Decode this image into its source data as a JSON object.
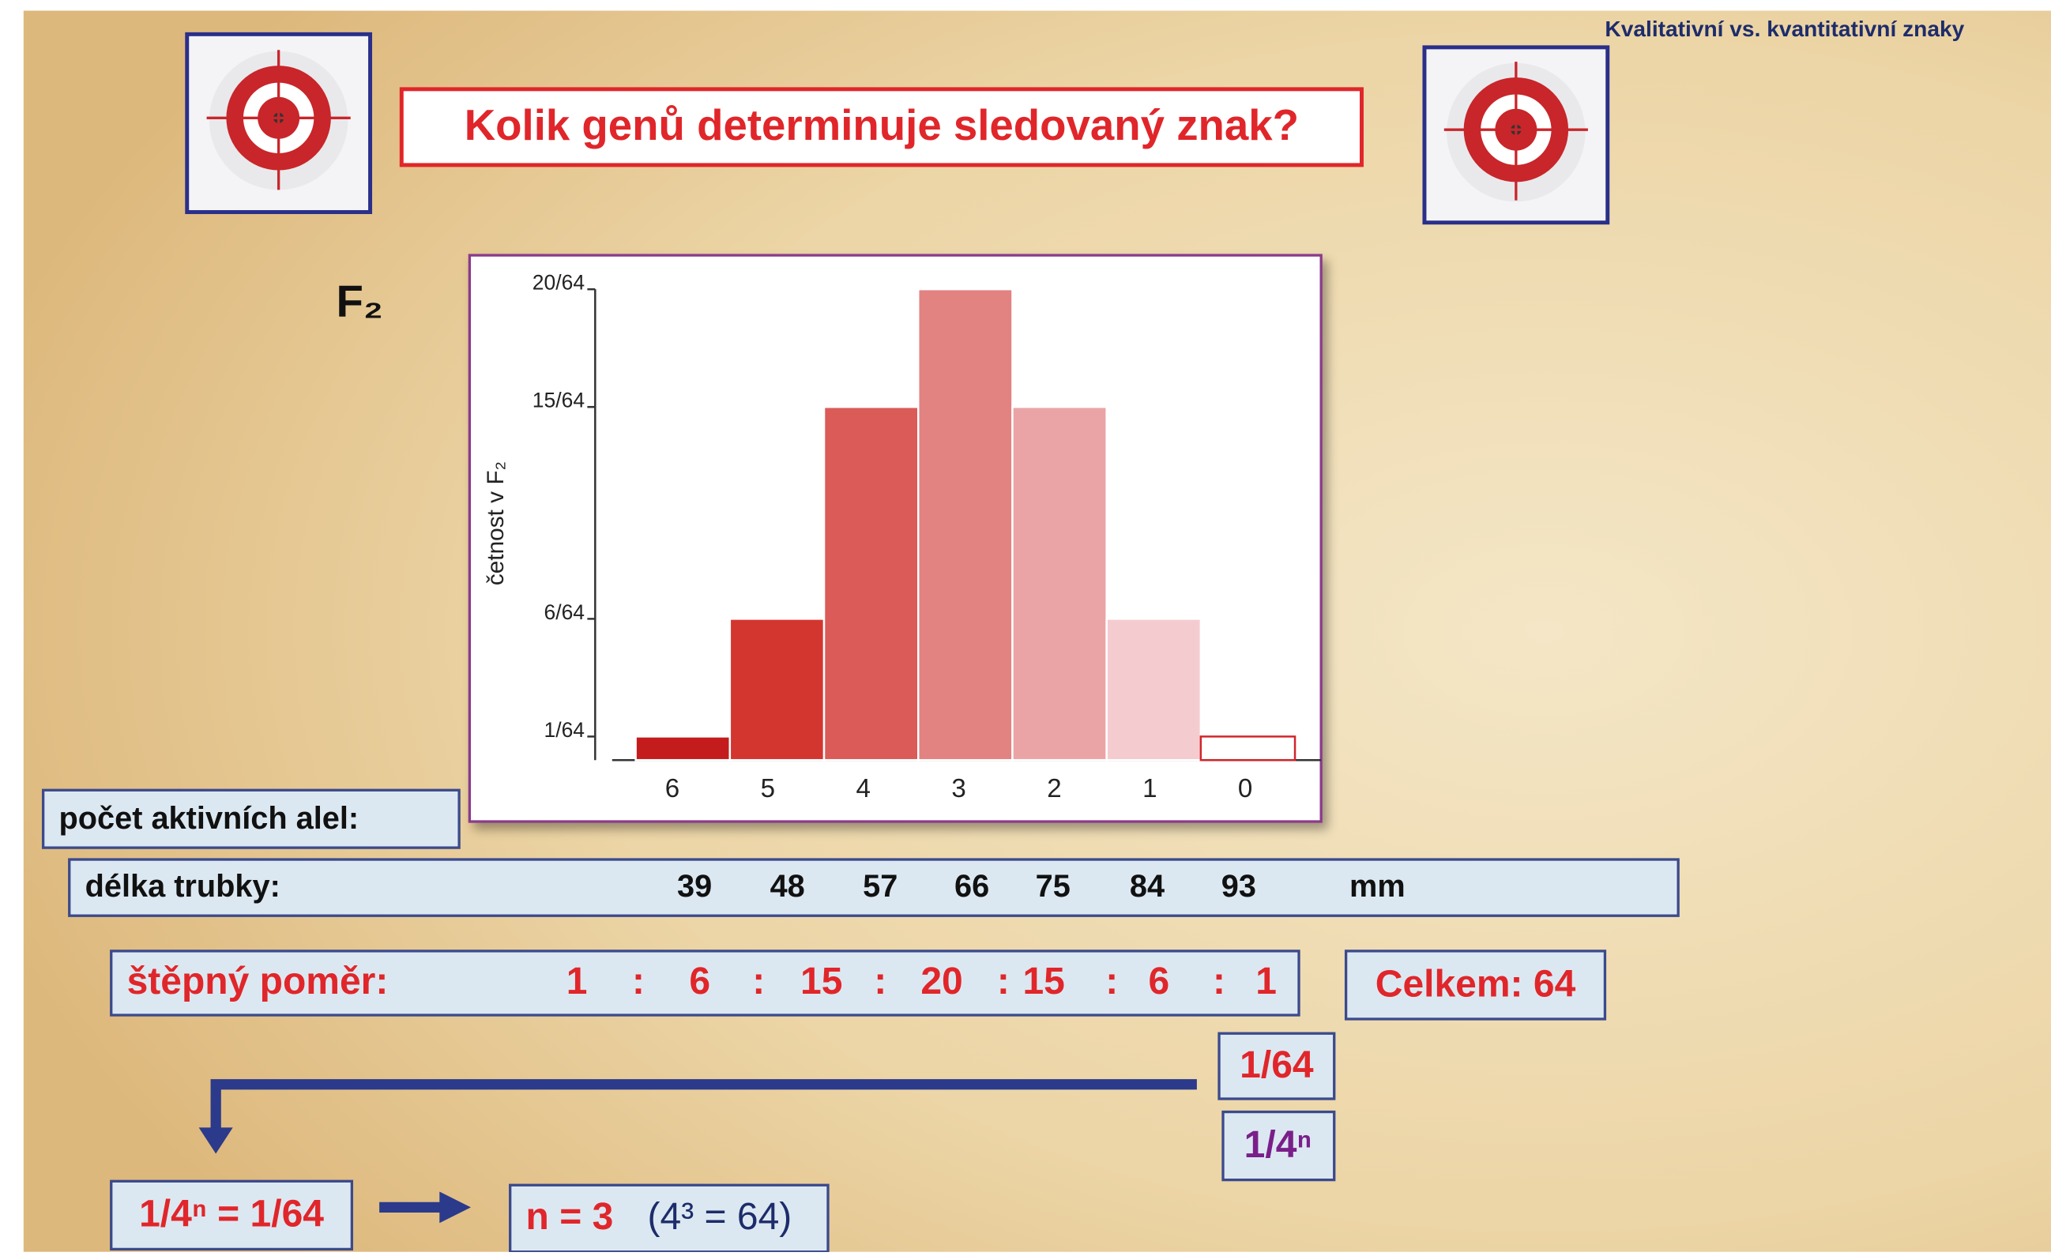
{
  "header": "Kvalitativní vs. kvantitativní znaky",
  "title": "Kolik genů determinuje sledovaný znak?",
  "generation": "F₂",
  "chart_data": {
    "type": "bar",
    "ylabel": "četnost v F₂",
    "categories": [
      "6",
      "5",
      "4",
      "3",
      "2",
      "1",
      "0"
    ],
    "values": [
      0.015625,
      0.09375,
      0.234375,
      0.3125,
      0.234375,
      0.09375,
      0.015625
    ],
    "colors": [
      "#c41c1c",
      "#d3362f",
      "#db5b58",
      "#e28281",
      "#eaa4a6",
      "#f4ccd0",
      "#ffffff"
    ],
    "ylim": [
      0,
      0.3125
    ],
    "yticks": [
      {
        "value": 0.015625,
        "label": "1/64"
      },
      {
        "value": 0.09375,
        "label": "6/64"
      },
      {
        "value": 0.234375,
        "label": "15/64"
      },
      {
        "value": 0.3125,
        "label": "20/64"
      }
    ]
  },
  "alleles_label": "počet aktivních alel:",
  "length": {
    "label": "délka trubky:",
    "values": [
      39,
      48,
      57,
      66,
      75,
      84,
      93
    ],
    "unit": "mm"
  },
  "ratio": {
    "label": "štěpný poměr:",
    "parts": [
      "1",
      ":",
      "6",
      ":",
      "15",
      ":",
      "20",
      ":",
      "15",
      ":",
      "6",
      ":",
      "1"
    ]
  },
  "total": "Celkem: 64",
  "fraction": "1/64",
  "formula": "1/4ⁿ",
  "equation": "1/4ⁿ = 1/64",
  "result": "n = 3",
  "check": "(4³ = 64)"
}
